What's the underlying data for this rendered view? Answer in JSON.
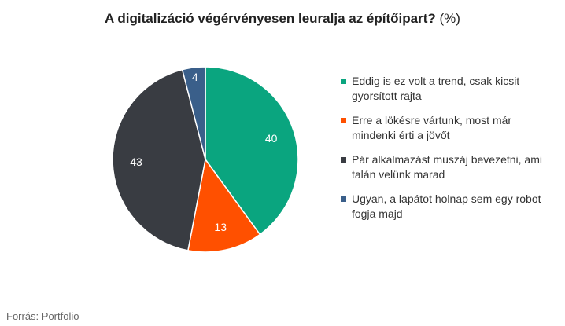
{
  "title": {
    "main": "A digitalizáció végérvényesen leuralja az építőipart?",
    "unit": "(%)"
  },
  "source": "Forrás: Portfolio",
  "chart_data": {
    "type": "pie",
    "title": "A digitalizáció végérvényesen leuralja az építőipart? (%)",
    "legend_position": "right",
    "start_angle": "top (12 o'clock), clockwise",
    "slices": [
      {
        "label": "Eddig is ez volt a trend, csak kicsit gyorsított rajta",
        "value": 40,
        "value_label": "40",
        "color": "#0aa57f"
      },
      {
        "label": "Erre a lökésre vártunk, most már mindenki érti a jövőt",
        "value": 13,
        "value_label": "13",
        "color": "#ff5000"
      },
      {
        "label": "Pár alkalmazást muszáj bevezetni, ami talán velünk marad",
        "value": 43,
        "value_label": "43",
        "color": "#393c42"
      },
      {
        "label": "Ugyan, a lapátot holnap sem egy robot fogja majd",
        "value": 4,
        "value_label": "4",
        "color": "#3a5f8a"
      }
    ]
  }
}
